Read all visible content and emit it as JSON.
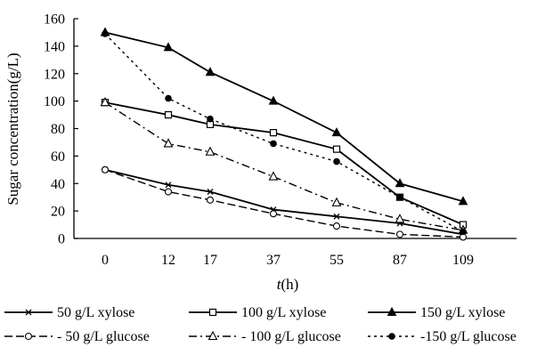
{
  "chart_data": {
    "type": "line",
    "title": "",
    "ylabel": "Sugar concentration(g/L)",
    "xlabel": "t(h)",
    "xlabel_parts": {
      "italic": "t",
      "rest": "(h)"
    },
    "categories": [
      "0",
      "12",
      "17",
      "37",
      "55",
      "87",
      "109"
    ],
    "ylim": [
      0,
      160
    ],
    "yticks": [
      "0",
      "20",
      "40",
      "60",
      "80",
      "100",
      "120",
      "140",
      "160"
    ],
    "grid": false,
    "legend_position": "bottom",
    "series": [
      {
        "name": "50 g/L xylose",
        "legend_text": "50 g/L xylose",
        "values": [
          50,
          39,
          34,
          21,
          16,
          11,
          3
        ],
        "marker": "x",
        "dash": "solid"
      },
      {
        "name": "100 g/L xylose",
        "legend_text": "100 g/L xylose",
        "values": [
          99,
          90,
          83,
          77,
          65,
          30,
          10
        ],
        "marker": "open-square",
        "dash": "solid"
      },
      {
        "name": "150 g/L xylose",
        "legend_text": "150 g/L xylose",
        "values": [
          150,
          139,
          121,
          100,
          77,
          40,
          27
        ],
        "marker": "filled-triangle",
        "dash": "solid"
      },
      {
        "name": "50 g/L glucose",
        "legend_text": "- 50 g/L glucose",
        "values": [
          50,
          34,
          28,
          18,
          9,
          3,
          1
        ],
        "marker": "open-circle",
        "dash": "long-dash"
      },
      {
        "name": "100 g/L glucose",
        "legend_text": "- 100 g/L glucose",
        "values": [
          99,
          69,
          63,
          45,
          26,
          14,
          6
        ],
        "marker": "open-triangle",
        "dash": "dash-dot"
      },
      {
        "name": "150 g/L glucose",
        "legend_text": "-150 g/L glucose",
        "values": [
          149,
          102,
          87,
          69,
          56,
          30,
          5
        ],
        "marker": "filled-circle",
        "dash": "dotted"
      }
    ]
  }
}
